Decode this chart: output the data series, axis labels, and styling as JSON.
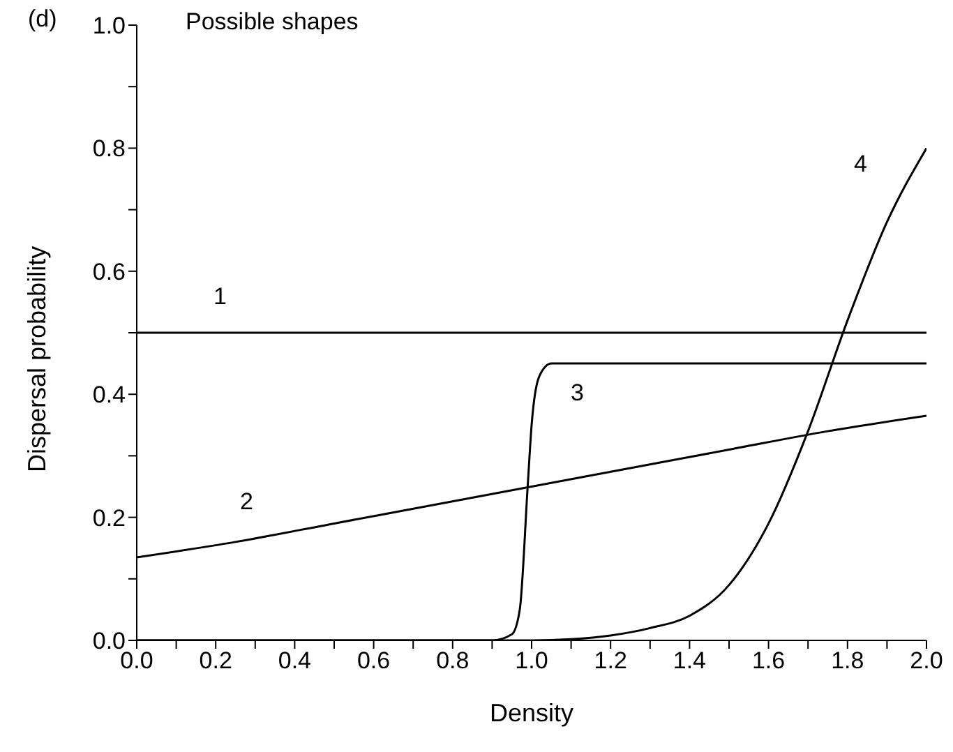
{
  "chart_data": {
    "type": "line",
    "title": "Possible shapes",
    "xlabel": "Density",
    "ylabel": "Dispersal probability",
    "annotations": [
      "(d)"
    ],
    "series": [
      {
        "name": "1",
        "color": "#000000",
        "x": [
          0,
          0.5,
          1.0,
          1.5,
          2.0
        ],
        "values": [
          0.5,
          0.5,
          0.5,
          0.5,
          0.5
        ]
      },
      {
        "name": "2",
        "color": "#000000",
        "x": [
          0,
          0.25,
          0.5,
          0.75,
          1.0,
          1.25,
          1.5,
          1.75,
          2.0
        ],
        "values": [
          0.135,
          0.16,
          0.19,
          0.22,
          0.25,
          0.28,
          0.31,
          0.34,
          0.365
        ]
      },
      {
        "name": "3",
        "color": "#000000",
        "x": [
          0,
          0.5,
          0.9,
          0.95,
          0.97,
          0.99,
          1.0,
          1.02,
          1.05,
          1.1,
          1.5,
          2.0
        ],
        "values": [
          0,
          0,
          0,
          0.01,
          0.05,
          0.25,
          0.35,
          0.43,
          0.45,
          0.45,
          0.45,
          0.45
        ]
      },
      {
        "name": "4",
        "color": "#000000",
        "x": [
          0,
          0.8,
          1.0,
          1.1,
          1.2,
          1.3,
          1.4,
          1.5,
          1.6,
          1.7,
          1.8,
          1.9,
          2.0
        ],
        "values": [
          0,
          0,
          0,
          0.002,
          0.008,
          0.02,
          0.04,
          0.09,
          0.19,
          0.34,
          0.52,
          0.68,
          0.8
        ]
      }
    ],
    "xlim": [
      0,
      2
    ],
    "ylim": [
      0,
      1
    ],
    "xticks": [
      {
        "value": 0,
        "label": "0.0"
      },
      {
        "value": 0.1,
        "label": null
      },
      {
        "value": 0.2,
        "label": "0.2"
      },
      {
        "value": 0.3,
        "label": null
      },
      {
        "value": 0.4,
        "label": "0.4"
      },
      {
        "value": 0.5,
        "label": null
      },
      {
        "value": 0.6,
        "label": "0.6"
      },
      {
        "value": 0.7,
        "label": null
      },
      {
        "value": 0.8,
        "label": "0.8"
      },
      {
        "value": 0.9,
        "label": null
      },
      {
        "value": 1,
        "label": "1.0"
      },
      {
        "value": 1.1,
        "label": null
      },
      {
        "value": 1.2,
        "label": "1.2"
      },
      {
        "value": 1.3,
        "label": null
      },
      {
        "value": 1.4,
        "label": "1.4"
      },
      {
        "value": 1.5,
        "label": null
      },
      {
        "value": 1.6,
        "label": "1.6"
      },
      {
        "value": 1.7,
        "label": null
      },
      {
        "value": 1.8,
        "label": "1.8"
      },
      {
        "value": 1.9,
        "label": null
      },
      {
        "value": 2,
        "label": "2.0"
      }
    ],
    "yticks": [
      {
        "value": 0,
        "label": "0.0"
      },
      {
        "value": 0.1,
        "label": null
      },
      {
        "value": 0.2,
        "label": "0.2"
      },
      {
        "value": 0.3,
        "label": null
      },
      {
        "value": 0.4,
        "label": "0.4"
      },
      {
        "value": 0.5,
        "label": null
      },
      {
        "value": 0.6,
        "label": "0.6"
      },
      {
        "value": 0.7,
        "label": null
      },
      {
        "value": 0.8,
        "label": "0.8"
      },
      {
        "value": 0.9,
        "label": null
      },
      {
        "value": 1,
        "label": "1.0"
      }
    ],
    "grid": false,
    "legend": false,
    "marker": "none",
    "line_style": "solid"
  }
}
